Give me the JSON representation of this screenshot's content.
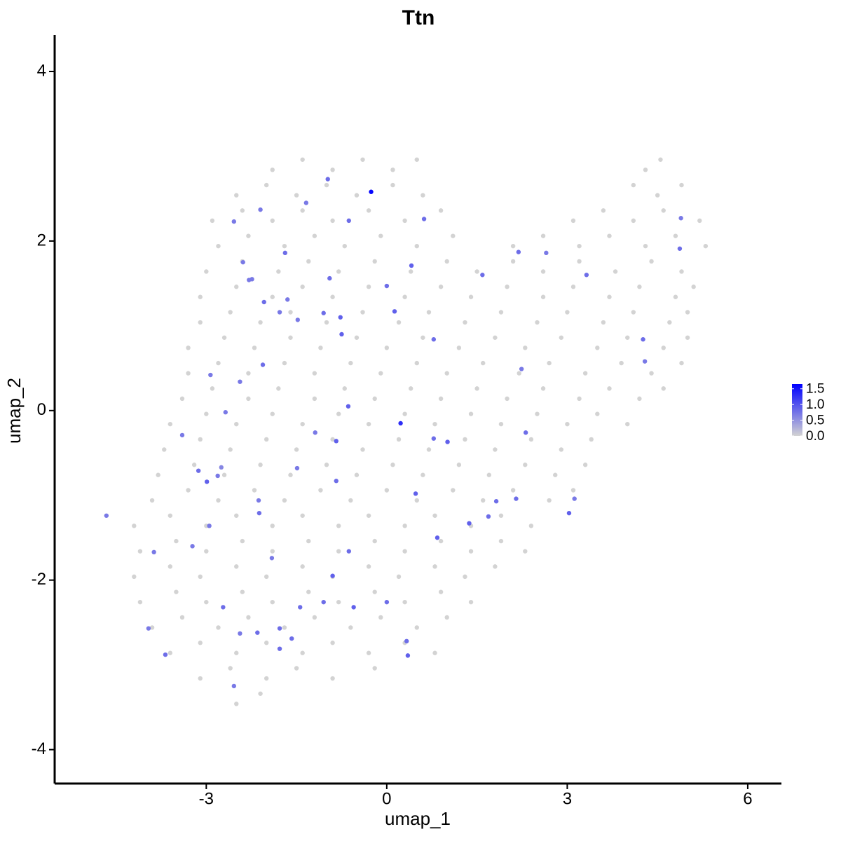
{
  "chart_data": {
    "type": "scatter",
    "title": "Ttn",
    "xlabel": "umap_1",
    "ylabel": "umap_2",
    "xlim": [
      -5.52,
      6.56
    ],
    "ylim": [
      -4.4,
      4.43
    ],
    "xticks": [
      -3,
      0,
      3,
      6
    ],
    "yticks": [
      -4,
      -2,
      0,
      2,
      4
    ],
    "color_scale": {
      "low": "#d3d3d3",
      "high": "#0000ff",
      "lim": [
        0,
        1.65
      ],
      "ticks": [
        {
          "value": 0,
          "label": "0.0"
        },
        {
          "value": 0.5,
          "label": "0.5"
        },
        {
          "value": 1,
          "label": "1.0"
        },
        1.5
      ]
    },
    "x": [
      -1.9,
      -1.4,
      -0.9,
      -0.4,
      0.1,
      0.5,
      4.3,
      4.55,
      -2.5,
      -2.0,
      -1.5,
      -1.0,
      -0.5,
      0.1,
      0.6,
      4.1,
      4.5,
      4.9,
      -2.9,
      -2.4,
      -1.9,
      -1.4,
      -0.9,
      -0.3,
      0.3,
      0.9,
      3.1,
      3.6,
      4.1,
      4.6,
      5.2,
      -2.8,
      -2.3,
      -1.7,
      -1.2,
      -0.7,
      -0.1,
      0.5,
      1.1,
      2.1,
      2.6,
      3.2,
      3.7,
      4.3,
      4.8,
      5.3,
      -3.0,
      -2.4,
      -1.8,
      -1.3,
      -0.8,
      -0.2,
      0.4,
      1.0,
      1.5,
      2.1,
      2.6,
      3.2,
      3.8,
      4.4,
      4.9,
      -3.1,
      -2.5,
      -1.9,
      -1.4,
      -0.9,
      -0.3,
      0.3,
      0.9,
      1.4,
      2.0,
      2.6,
      3.1,
      3.7,
      4.2,
      4.8,
      5.1,
      -3.1,
      -2.6,
      -2.1,
      -1.6,
      -1.0,
      -0.4,
      0.2,
      0.7,
      1.3,
      1.9,
      2.5,
      3.0,
      3.6,
      4.1,
      4.7,
      5.0,
      -3.3,
      -2.7,
      -2.2,
      -1.6,
      -1.1,
      -0.5,
      0.0,
      0.6,
      1.2,
      1.8,
      2.3,
      2.9,
      3.5,
      4.0,
      4.6,
      5.0,
      -3.3,
      -2.8,
      -2.3,
      -1.7,
      -1.2,
      -0.6,
      -0.1,
      0.5,
      1.0,
      1.6,
      2.2,
      2.7,
      3.3,
      3.9,
      4.4,
      4.9,
      -3.4,
      -2.9,
      -2.3,
      -1.8,
      -1.2,
      -0.7,
      -0.2,
      0.4,
      0.9,
      1.5,
      2.0,
      2.6,
      3.2,
      3.7,
      4.2,
      4.6,
      -3.6,
      -3.0,
      -2.5,
      -1.9,
      -1.4,
      -0.8,
      -0.3,
      0.3,
      0.8,
      1.4,
      1.9,
      2.5,
      3.0,
      3.5,
      4.0,
      -3.7,
      -3.1,
      -2.6,
      -2.0,
      -1.5,
      -0.9,
      -0.4,
      0.2,
      0.7,
      1.3,
      1.8,
      2.4,
      2.9,
      3.4,
      -3.8,
      -3.2,
      -2.7,
      -2.1,
      -1.6,
      -1.0,
      -0.5,
      0.1,
      0.6,
      1.2,
      1.7,
      2.3,
      2.8,
      3.3,
      -3.9,
      -3.3,
      -2.8,
      -2.2,
      -1.7,
      -1.1,
      -0.6,
      0.0,
      0.5,
      1.1,
      1.6,
      2.1,
      2.7,
      3.1,
      -4.2,
      -3.6,
      -3.0,
      -2.5,
      -1.9,
      -1.4,
      -0.8,
      -0.3,
      0.3,
      0.8,
      1.4,
      1.9,
      2.4,
      -4.1,
      -3.5,
      -3.0,
      -2.4,
      -1.9,
      -1.3,
      -0.8,
      -0.2,
      0.3,
      0.9,
      1.4,
      1.9,
      2.3,
      -4.2,
      -3.6,
      -3.1,
      -2.5,
      -2.0,
      -1.4,
      -0.9,
      -0.3,
      0.2,
      0.8,
      1.3,
      1.8,
      -4.1,
      -3.5,
      -3.0,
      -2.4,
      -1.9,
      -1.3,
      -0.8,
      -0.2,
      0.3,
      0.9,
      1.4,
      -3.9,
      -3.4,
      -2.8,
      -2.3,
      -1.7,
      -1.2,
      -0.6,
      -0.1,
      0.5,
      1.0,
      -3.6,
      -3.1,
      -2.5,
      -2.0,
      -1.4,
      -0.9,
      -0.3,
      0.3,
      0.8,
      -3.1,
      -2.6,
      -2.0,
      -1.5,
      -0.9,
      -0.2,
      -2.5,
      -2.1,
      -4.66,
      -3.87,
      -3.96,
      -3.68,
      -3.4,
      -3.23,
      -3.13,
      -2.99,
      -2.93,
      -2.95,
      -2.81,
      -2.75,
      -2.72,
      -2.68,
      -2.54,
      -2.54,
      -2.44,
      -2.39,
      -2.29,
      -2.24,
      -2.44,
      -2.15,
      -2.13,
      -2.12,
      -2.1,
      -2.06,
      -2.04,
      -1.91,
      -1.78,
      -1.78,
      -1.78,
      -1.69,
      -1.65,
      -1.58,
      -1.48,
      -1.49,
      -1.44,
      -1.34,
      -1.19,
      -1.05,
      -1.05,
      -0.98,
      -0.95,
      -0.9,
      -0.84,
      -0.84,
      -0.77,
      -0.75,
      -0.64,
      -0.63,
      -0.63,
      -0.55,
      0.0,
      0.0,
      0.13,
      0.33,
      0.35,
      0.41,
      0.48,
      0.62,
      0.78,
      0.78,
      0.84,
      1.01,
      1.37,
      1.59,
      1.69,
      1.82,
      2.15,
      2.19,
      2.24,
      2.31,
      2.65,
      3.03,
      3.12,
      3.32,
      4.26,
      4.29,
      4.87,
      4.89,
      -0.26,
      0.23
    ],
    "y": [
      2.84,
      2.96,
      2.84,
      2.96,
      2.84,
      2.96,
      2.84,
      2.96,
      2.54,
      2.66,
      2.54,
      2.66,
      2.54,
      2.66,
      2.54,
      2.66,
      2.54,
      2.66,
      2.24,
      2.36,
      2.24,
      2.36,
      2.24,
      2.36,
      2.24,
      2.36,
      2.24,
      2.36,
      2.24,
      2.36,
      2.24,
      1.94,
      2.06,
      1.94,
      2.06,
      1.94,
      2.06,
      1.94,
      2.06,
      1.94,
      2.06,
      1.94,
      2.06,
      1.94,
      2.06,
      1.94,
      1.64,
      1.76,
      1.64,
      1.76,
      1.64,
      1.76,
      1.64,
      1.76,
      1.64,
      1.76,
      1.64,
      1.76,
      1.64,
      1.76,
      1.64,
      1.34,
      1.46,
      1.34,
      1.46,
      1.34,
      1.46,
      1.34,
      1.46,
      1.34,
      1.46,
      1.34,
      1.46,
      1.34,
      1.46,
      1.34,
      1.46,
      1.04,
      1.16,
      1.04,
      1.16,
      1.04,
      1.16,
      1.04,
      1.16,
      1.04,
      1.16,
      1.04,
      1.16,
      1.04,
      1.16,
      1.04,
      1.16,
      0.74,
      0.86,
      0.74,
      0.86,
      0.74,
      0.86,
      0.74,
      0.86,
      0.74,
      0.86,
      0.74,
      0.86,
      0.74,
      0.86,
      0.74,
      0.86,
      0.44,
      0.56,
      0.44,
      0.56,
      0.44,
      0.56,
      0.44,
      0.56,
      0.44,
      0.56,
      0.44,
      0.56,
      0.44,
      0.56,
      0.44,
      0.56,
      0.14,
      0.26,
      0.14,
      0.26,
      0.14,
      0.26,
      0.14,
      0.26,
      0.14,
      0.26,
      0.14,
      0.26,
      0.14,
      0.26,
      0.14,
      0.26,
      -0.16,
      -0.04,
      -0.16,
      -0.04,
      -0.16,
      -0.04,
      -0.16,
      -0.04,
      -0.16,
      -0.04,
      -0.16,
      -0.04,
      -0.16,
      -0.04,
      -0.16,
      -0.46,
      -0.34,
      -0.46,
      -0.34,
      -0.46,
      -0.34,
      -0.46,
      -0.34,
      -0.46,
      -0.34,
      -0.46,
      -0.34,
      -0.46,
      -0.34,
      -0.76,
      -0.64,
      -0.76,
      -0.64,
      -0.76,
      -0.64,
      -0.76,
      -0.64,
      -0.76,
      -0.64,
      -0.76,
      -0.64,
      -0.76,
      -0.64,
      -1.06,
      -0.94,
      -1.06,
      -0.94,
      -1.06,
      -0.94,
      -1.06,
      -0.94,
      -1.06,
      -0.94,
      -1.06,
      -0.94,
      -1.06,
      -0.94,
      -1.36,
      -1.24,
      -1.36,
      -1.24,
      -1.36,
      -1.24,
      -1.36,
      -1.24,
      -1.36,
      -1.24,
      -1.36,
      -1.24,
      -1.36,
      -1.66,
      -1.54,
      -1.66,
      -1.54,
      -1.66,
      -1.54,
      -1.66,
      -1.54,
      -1.66,
      -1.54,
      -1.66,
      -1.54,
      -1.66,
      -1.96,
      -1.84,
      -1.96,
      -1.84,
      -1.96,
      -1.84,
      -1.96,
      -1.84,
      -1.96,
      -1.84,
      -1.96,
      -1.84,
      -2.26,
      -2.14,
      -2.26,
      -2.14,
      -2.26,
      -2.14,
      -2.26,
      -2.14,
      -2.26,
      -2.14,
      -2.26,
      -2.56,
      -2.44,
      -2.56,
      -2.44,
      -2.56,
      -2.44,
      -2.56,
      -2.44,
      -2.56,
      -2.44,
      -2.86,
      -2.74,
      -2.86,
      -2.74,
      -2.86,
      -2.74,
      -2.86,
      -2.74,
      -2.86,
      -3.16,
      -3.04,
      -3.16,
      -3.04,
      -3.16,
      -3.04,
      -3.46,
      -3.34,
      -1.24,
      -1.67,
      -2.57,
      -2.88,
      -0.29,
      -1.6,
      -0.71,
      -0.84,
      0.42,
      -1.36,
      -0.77,
      -0.67,
      -2.32,
      -0.02,
      2.23,
      -3.25,
      0.34,
      1.75,
      1.54,
      1.55,
      -2.63,
      -2.62,
      -1.06,
      -1.21,
      2.37,
      0.54,
      1.28,
      -1.74,
      1.16,
      -2.57,
      -2.81,
      1.86,
      1.31,
      -2.69,
      1.07,
      -0.68,
      -2.32,
      2.45,
      -0.26,
      1.15,
      -2.26,
      2.73,
      1.56,
      -1.95,
      -0.36,
      -0.83,
      1.1,
      0.9,
      0.05,
      2.24,
      -1.66,
      -2.32,
      1.47,
      -2.26,
      1.17,
      -2.72,
      -2.89,
      1.71,
      -0.98,
      2.26,
      0.84,
      -0.33,
      -1.5,
      -0.37,
      -1.33,
      1.6,
      -1.25,
      -1.07,
      -1.04,
      1.87,
      0.49,
      -0.26,
      1.86,
      -1.21,
      -1.04,
      1.6,
      0.84,
      0.58,
      1.91,
      2.27,
      2.58,
      -0.15
    ],
    "values": [
      0,
      0,
      0,
      0,
      0,
      0,
      0,
      0,
      0,
      0,
      0,
      0,
      0,
      0,
      0,
      0,
      0,
      0,
      0,
      0,
      0,
      0,
      0,
      0,
      0,
      0,
      0,
      0,
      0,
      0,
      0,
      0,
      0,
      0,
      0,
      0,
      0,
      0,
      0,
      0,
      0,
      0,
      0,
      0,
      0,
      0,
      0,
      0,
      0,
      0,
      0,
      0,
      0,
      0,
      0,
      0,
      0,
      0,
      0,
      0,
      0,
      0,
      0,
      0,
      0,
      0,
      0,
      0,
      0,
      0,
      0,
      0,
      0,
      0,
      0,
      0,
      0,
      0,
      0,
      0,
      0,
      0,
      0,
      0,
      0,
      0,
      0,
      0,
      0,
      0,
      0,
      0,
      0,
      0,
      0,
      0,
      0,
      0,
      0,
      0,
      0,
      0,
      0,
      0,
      0,
      0,
      0,
      0,
      0,
      0,
      0,
      0,
      0,
      0,
      0,
      0,
      0,
      0,
      0,
      0,
      0,
      0,
      0,
      0,
      0,
      0,
      0,
      0,
      0,
      0,
      0,
      0,
      0,
      0,
      0,
      0,
      0,
      0,
      0,
      0,
      0,
      0,
      0,
      0,
      0,
      0,
      0,
      0,
      0,
      0,
      0,
      0,
      0,
      0,
      0,
      0,
      0,
      0,
      0,
      0,
      0,
      0,
      0,
      0,
      0,
      0,
      0,
      0,
      0,
      0,
      0,
      0,
      0,
      0,
      0,
      0,
      0,
      0,
      0,
      0,
      0,
      0,
      0,
      0,
      0,
      0,
      0,
      0,
      0,
      0,
      0,
      0,
      0,
      0,
      0,
      0,
      0,
      0,
      0,
      0,
      0,
      0,
      0,
      0,
      0,
      0,
      0,
      0,
      0,
      0,
      0,
      0,
      0,
      0,
      0,
      0,
      0,
      0,
      0,
      0,
      0,
      0,
      0,
      0,
      0,
      0,
      0,
      0,
      0,
      0,
      0,
      0,
      0,
      0,
      0,
      0,
      0,
      0,
      0,
      0,
      0,
      0,
      0,
      0,
      0,
      0,
      0,
      0,
      0,
      0,
      0,
      0,
      0,
      0,
      0,
      0,
      0,
      0,
      0,
      0,
      0,
      0,
      0,
      0,
      0,
      0,
      0,
      0,
      0,
      0,
      0,
      0,
      0,
      0,
      0.7,
      0.7,
      0.7,
      0.8,
      0.7,
      0.7,
      0.8,
      0.9,
      0.7,
      0.7,
      0.7,
      0.6,
      0.8,
      0.7,
      0.7,
      0.7,
      0.7,
      0.7,
      0.7,
      0.7,
      0.7,
      0.8,
      0.7,
      0.8,
      0.7,
      0.8,
      0.8,
      0.7,
      0.7,
      0.8,
      0.8,
      0.8,
      0.7,
      0.8,
      0.7,
      0.7,
      0.8,
      0.7,
      0.7,
      0.8,
      0.8,
      0.8,
      0.8,
      0.9,
      0.9,
      0.8,
      0.9,
      0.9,
      0.9,
      0.8,
      0.8,
      0.9,
      0.8,
      0.8,
      0.9,
      0.8,
      0.9,
      0.9,
      0.9,
      0.8,
      0.8,
      0.8,
      0.9,
      0.9,
      0.9,
      0.8,
      0.8,
      0.8,
      0.8,
      0.8,
      0.7,
      0.8,
      0.7,
      0.9,
      0.7,
      0.8,
      0.8,
      0.7,
      0.8,
      0.7,
      1.6,
      1.3
    ]
  }
}
